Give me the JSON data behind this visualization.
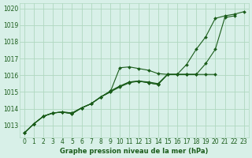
{
  "bg_color": "#d8f0e8",
  "grid_color": "#b0d8c0",
  "line_color": "#1a5c1a",
  "text_color": "#1a5c1a",
  "xlabel": "Graphe pression niveau de la mer (hPa)",
  "ylim": [
    1012.3,
    1020.3
  ],
  "xlim": [
    -0.5,
    23.5
  ],
  "yticks": [
    1013,
    1014,
    1015,
    1016,
    1017,
    1018,
    1019,
    1020
  ],
  "xticks": [
    0,
    1,
    2,
    3,
    4,
    5,
    6,
    7,
    8,
    9,
    10,
    11,
    12,
    13,
    14,
    15,
    16,
    17,
    18,
    19,
    20,
    21,
    22,
    23
  ],
  "series": [
    {
      "x": [
        0,
        1,
        2,
        3,
        4,
        5,
        6,
        7,
        8,
        9,
        10,
        11,
        12,
        13,
        14,
        15,
        16,
        17,
        18,
        19,
        20,
        21,
        22,
        23
      ],
      "y": [
        1012.55,
        1013.1,
        1013.55,
        1013.75,
        1013.8,
        1013.75,
        1014.05,
        1014.3,
        1014.7,
        1015.0,
        1015.3,
        1015.55,
        1015.65,
        1015.6,
        1015.5,
        1016.05,
        1016.05,
        1016.65,
        1017.55,
        1018.3,
        1019.4,
        1019.55,
        1019.65,
        1019.8
      ]
    },
    {
      "x": [
        0,
        1,
        2,
        3,
        4,
        5,
        6,
        7,
        8,
        9,
        10,
        11,
        12,
        13,
        14,
        15,
        16,
        17,
        18,
        19,
        20,
        21,
        22
      ],
      "y": [
        1012.55,
        1013.1,
        1013.55,
        1013.75,
        1013.8,
        1013.75,
        1014.05,
        1014.3,
        1014.7,
        1015.0,
        1016.45,
        1016.5,
        1016.4,
        1016.3,
        1016.1,
        1016.05,
        1016.05,
        1016.05,
        1016.05,
        1016.7,
        1017.55,
        1019.45,
        1019.55
      ]
    },
    {
      "x": [
        0,
        1,
        2,
        3,
        4,
        5,
        6,
        7,
        8,
        9,
        10,
        11,
        12,
        13,
        14,
        15,
        16,
        17,
        18,
        19,
        20
      ],
      "y": [
        1012.55,
        1013.1,
        1013.55,
        1013.75,
        1013.8,
        1013.7,
        1014.05,
        1014.3,
        1014.7,
        1015.05,
        1015.35,
        1015.6,
        1015.65,
        1015.55,
        1015.45,
        1016.05,
        1016.05,
        1016.05,
        1016.05,
        1016.05,
        1016.05
      ]
    },
    {
      "x": [
        0,
        1,
        2,
        3,
        4,
        5,
        6,
        7,
        8,
        9,
        10,
        11,
        12,
        13,
        14,
        15,
        16,
        17,
        18
      ],
      "y": [
        1012.55,
        1013.1,
        1013.55,
        1013.75,
        1013.8,
        1013.7,
        1014.05,
        1014.3,
        1014.7,
        1015.05,
        1015.35,
        1015.6,
        1015.65,
        1015.55,
        1015.45,
        1016.05,
        1016.05,
        1016.05,
        1016.05
      ]
    }
  ]
}
